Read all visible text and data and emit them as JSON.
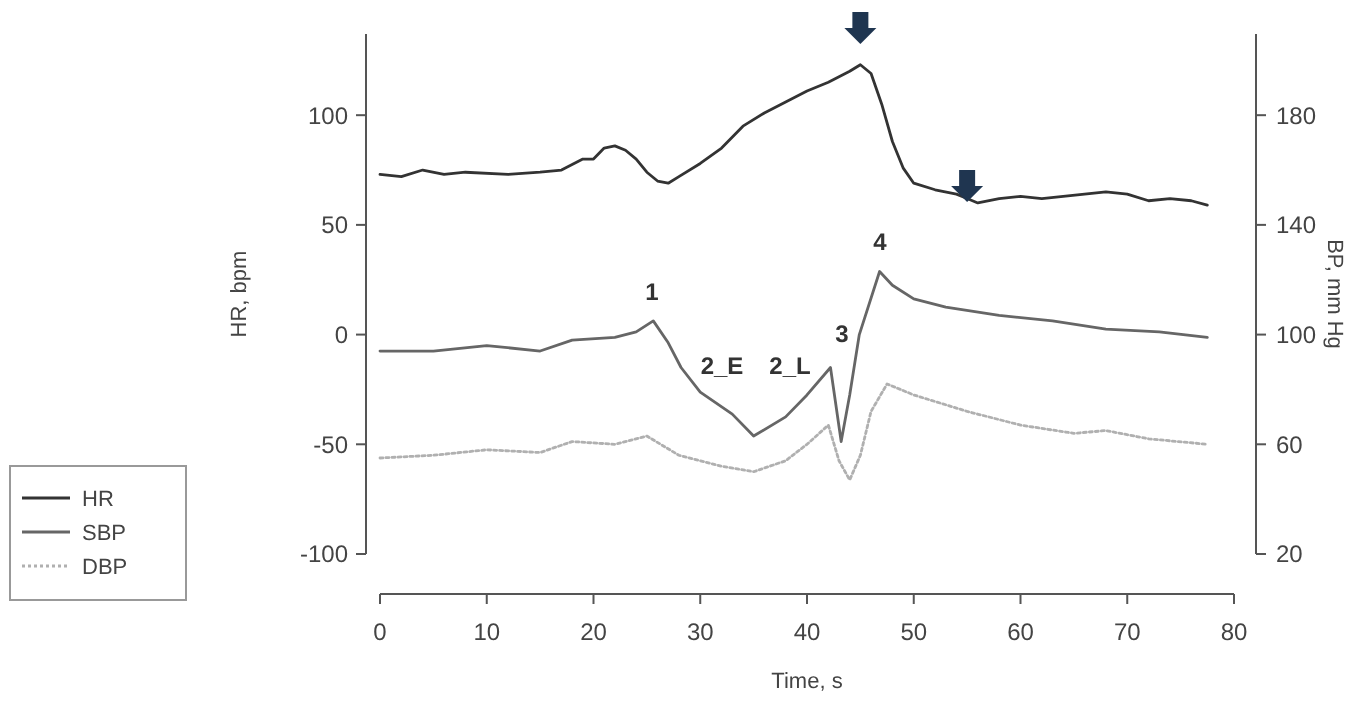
{
  "chart_data": {
    "type": "line",
    "xlabel": "Time, s",
    "ylabel": "HR, bpm",
    "y2label": "BP, mm Hg",
    "xlim": [
      0,
      80
    ],
    "xticks": [
      0,
      10,
      20,
      30,
      40,
      50,
      60,
      70,
      80
    ],
    "ylim": [
      -100,
      137
    ],
    "yticks": [
      -100,
      -50,
      0,
      50,
      100
    ],
    "y2lim": [
      20,
      209.6
    ],
    "y2ticks": [
      20,
      60,
      100,
      140,
      180
    ],
    "legend": "left",
    "grid": false,
    "marker": "none",
    "series": [
      {
        "name": "HR",
        "color": "#333333",
        "line_style": "solid",
        "x": [
          0,
          2,
          4,
          6,
          8,
          12,
          15,
          17,
          19,
          20,
          21,
          22,
          23,
          24,
          25,
          26,
          27,
          28,
          30,
          32,
          34,
          36,
          38,
          40,
          42,
          44,
          45,
          46,
          47,
          48,
          49,
          50,
          52,
          54,
          55,
          56,
          58,
          60,
          62,
          64,
          66,
          68,
          70,
          72,
          74,
          76,
          77.5
        ],
        "values": [
          73,
          72,
          75,
          73,
          74,
          73,
          74,
          75,
          80,
          80,
          85,
          86,
          84,
          80,
          74,
          70,
          69,
          72,
          78,
          85,
          95,
          101,
          106,
          111,
          115,
          120,
          123,
          119,
          105,
          88,
          76,
          69,
          66,
          64,
          62,
          60,
          62,
          63,
          62,
          63,
          64,
          65,
          64,
          61,
          62,
          61,
          59
        ]
      },
      {
        "name": "SBP",
        "color": "#666666",
        "line_style": "solid",
        "axis": "y2",
        "x": [
          0,
          5,
          10,
          15,
          18,
          22,
          24,
          25.6,
          27,
          28.2,
          30,
          33,
          35,
          38,
          40,
          42.2,
          43.2,
          44,
          44.9,
          46.8,
          48,
          50,
          53,
          58,
          63,
          68,
          73,
          77.5
        ],
        "values": [
          94,
          94,
          96,
          94,
          98,
          99,
          101,
          105,
          97,
          88,
          79,
          71,
          63,
          70,
          78,
          88,
          61,
          78,
          100,
          123,
          118,
          113,
          110,
          107,
          105,
          102,
          101,
          99
        ]
      },
      {
        "name": "DBP",
        "color": "#b0b0b0",
        "line_style": "dotted",
        "axis": "y2",
        "x": [
          0,
          5,
          10,
          15,
          18,
          22,
          25,
          28,
          32,
          35,
          38,
          40,
          42,
          43,
          44,
          45,
          46,
          47.5,
          50,
          55,
          60,
          65,
          68,
          72,
          77.5
        ],
        "values": [
          55,
          56,
          58,
          57,
          61,
          60,
          63,
          56,
          52,
          50,
          54,
          60,
          67,
          54,
          47,
          56,
          72,
          82,
          78,
          72,
          67,
          64,
          65,
          62,
          60
        ]
      }
    ],
    "annotations": [
      "1",
      "2_E",
      "2_L",
      "3",
      "4"
    ]
  }
}
